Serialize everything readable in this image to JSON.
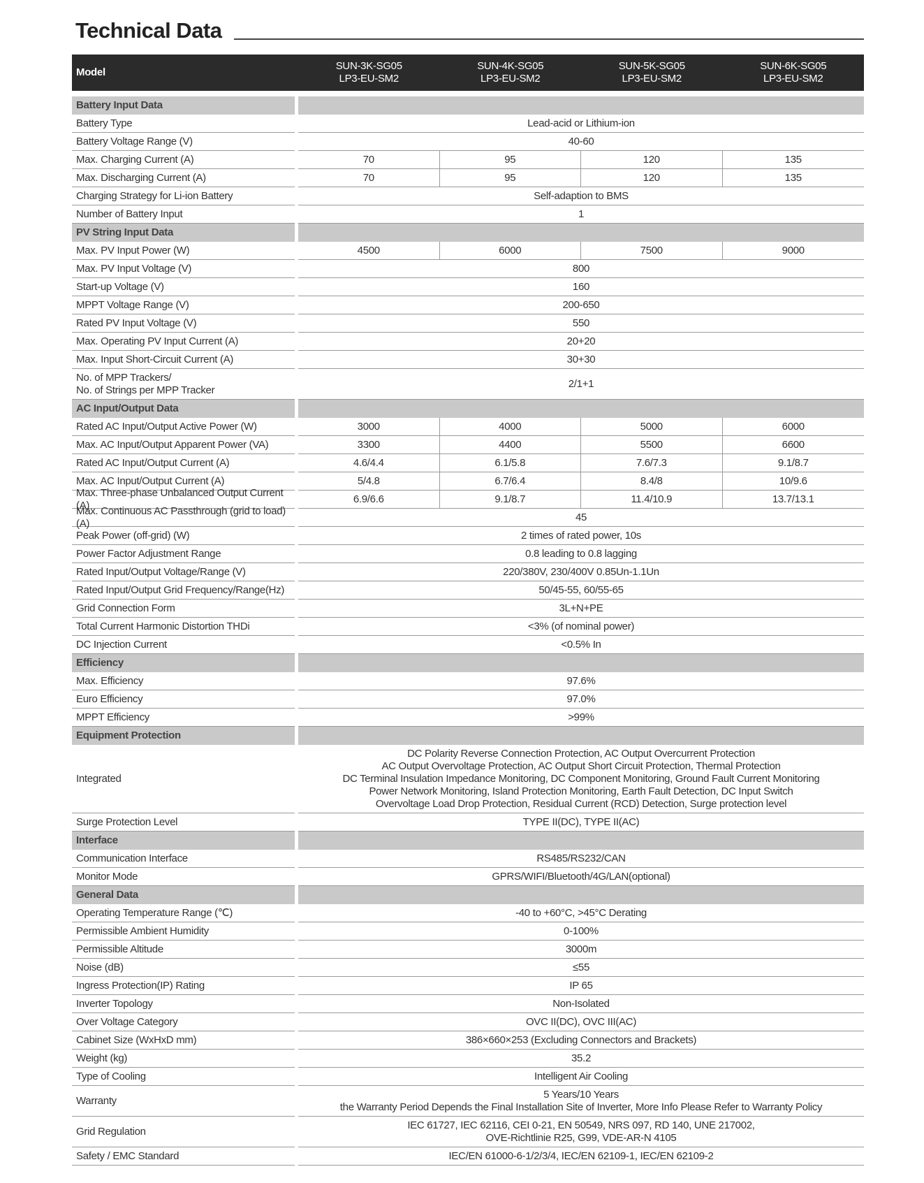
{
  "title": "Technical Data",
  "header": {
    "label": "Model",
    "models": [
      "SUN-3K-SG05\nLP3-EU-SM2",
      "SUN-4K-SG05\nLP3-EU-SM2",
      "SUN-5K-SG05\nLP3-EU-SM2",
      "SUN-6K-SG05\nLP3-EU-SM2"
    ]
  },
  "sections": [
    {
      "title": "Battery Input Data",
      "rows": [
        {
          "label": "Battery Type",
          "values": [
            "Lead-acid or Lithium-ion"
          ]
        },
        {
          "label": "Battery Voltage Range (V)",
          "values": [
            "40-60"
          ]
        },
        {
          "label": "Max. Charging Current (A)",
          "values": [
            "70",
            "95",
            "120",
            "135"
          ]
        },
        {
          "label": "Max. Discharging Current (A)",
          "values": [
            "70",
            "95",
            "120",
            "135"
          ]
        },
        {
          "label": "Charging Strategy for Li-ion Battery",
          "values": [
            "Self-adaption to BMS"
          ]
        },
        {
          "label": "Number of Battery Input",
          "values": [
            "1"
          ]
        }
      ]
    },
    {
      "title": "PV String Input Data",
      "rows": [
        {
          "label": "Max. PV Input Power (W)",
          "values": [
            "4500",
            "6000",
            "7500",
            "9000"
          ]
        },
        {
          "label": "Max. PV Input Voltage (V)",
          "values": [
            "800"
          ]
        },
        {
          "label": "Start-up Voltage (V)",
          "values": [
            "160"
          ]
        },
        {
          "label": "MPPT  Voltage Range (V)",
          "values": [
            "200-650"
          ]
        },
        {
          "label": "Rated PV Input Voltage (V)",
          "values": [
            "550"
          ]
        },
        {
          "label": "Max. Operating PV Input Current (A)",
          "values": [
            "20+20"
          ]
        },
        {
          "label": "Max. Input Short-Circuit Current (A)",
          "values": [
            "30+30"
          ]
        },
        {
          "label": "No. of MPP Trackers/\nNo. of Strings per MPP Tracker",
          "values": [
            "2/1+1"
          ]
        }
      ]
    },
    {
      "title": "AC Input/Output Data",
      "rows": [
        {
          "label": "Rated AC Input/Output Active Power (W)",
          "values": [
            "3000",
            "4000",
            "5000",
            "6000"
          ]
        },
        {
          "label": "Max. AC Input/Output Apparent Power (VA)",
          "values": [
            "3300",
            "4400",
            "5500",
            "6600"
          ]
        },
        {
          "label": "Rated AC Input/Output Current (A)",
          "values": [
            "4.6/4.4",
            "6.1/5.8",
            "7.6/7.3",
            "9.1/8.7"
          ]
        },
        {
          "label": "Max. AC Input/Output Current (A)",
          "values": [
            "5/4.8",
            "6.7/6.4",
            "8.4/8",
            "10/9.6"
          ]
        },
        {
          "label": "Max. Three-phase Unbalanced Output Current (A)",
          "values": [
            "6.9/6.6",
            "9.1/8.7",
            "11.4/10.9",
            "13.7/13.1"
          ]
        },
        {
          "label": "Max. Continuous AC Passthrough (grid to load) (A)",
          "values": [
            "45"
          ]
        },
        {
          "label": "Peak Power (off-grid) (W)",
          "values": [
            "2 times of rated power, 10s"
          ]
        },
        {
          "label": "Power Factor Adjustment Range",
          "values": [
            "0.8 leading to 0.8 lagging"
          ]
        },
        {
          "label": "Rated Input/Output Voltage/Range (V)",
          "values": [
            "220/380V, 230/400V  0.85Un-1.1Un"
          ]
        },
        {
          "label": "Rated Input/Output Grid Frequency/Range(Hz)",
          "values": [
            "50/45-55,  60/55-65"
          ]
        },
        {
          "label": "Grid Connection Form",
          "values": [
            "3L+N+PE"
          ]
        },
        {
          "label": "Total Current Harmonic Distortion THDi",
          "values": [
            "<3% (of nominal power)"
          ]
        },
        {
          "label": "DC Injection Current",
          "values": [
            "<0.5% In"
          ]
        }
      ]
    },
    {
      "title": "Efficiency",
      "rows": [
        {
          "label": "Max. Efficiency",
          "values": [
            "97.6%"
          ]
        },
        {
          "label": "Euro Efficiency",
          "values": [
            "97.0%"
          ]
        },
        {
          "label": "MPPT Efficiency",
          "values": [
            ">99%"
          ]
        }
      ]
    },
    {
      "title": "Equipment Protection",
      "rows": [
        {
          "label": "Integrated",
          "values": [
            "DC Polarity Reverse Connection Protection, AC Output Overcurrent Protection\nAC Output Overvoltage Protection, AC Output Short Circuit Protection, Thermal Protection\nDC Terminal Insulation Impedance Monitoring, DC Component Monitoring, Ground Fault Current Monitoring\nPower Network Monitoring, Island Protection Monitoring, Earth Fault Detection, DC Input Switch\nOvervoltage Load Drop Protection, Residual Current (RCD) Detection, Surge protection level"
          ]
        },
        {
          "label": "Surge Protection Level",
          "values": [
            "TYPE II(DC), TYPE II(AC)"
          ]
        }
      ]
    },
    {
      "title": "Interface",
      "rows": [
        {
          "label": "Communication Interface",
          "values": [
            "RS485/RS232/CAN"
          ]
        },
        {
          "label": "Monitor Mode",
          "values": [
            "GPRS/WIFI/Bluetooth/4G/LAN(optional)"
          ]
        }
      ]
    },
    {
      "title": "General Data",
      "rows": [
        {
          "label": "Operating Temperature Range (℃)",
          "values": [
            "-40 to +60°C, >45°C Derating"
          ]
        },
        {
          "label": "Permissible Ambient Humidity",
          "values": [
            "0-100%"
          ]
        },
        {
          "label": "Permissible Altitude",
          "values": [
            "3000m"
          ]
        },
        {
          "label": "Noise (dB)",
          "values": [
            "≤55"
          ]
        },
        {
          "label": "Ingress Protection(IP) Rating",
          "values": [
            "IP 65"
          ]
        },
        {
          "label": "Inverter Topology",
          "values": [
            "Non-Isolated"
          ]
        },
        {
          "label": "Over Voltage Category",
          "values": [
            "OVC II(DC), OVC III(AC)"
          ]
        },
        {
          "label": "Cabinet Size (WxHxD mm)",
          "values": [
            "386×660×253 (Excluding Connectors and Brackets)"
          ]
        },
        {
          "label": "Weight (kg)",
          "values": [
            "35.2"
          ]
        },
        {
          "label": "Type of Cooling",
          "values": [
            "Intelligent Air Cooling"
          ]
        },
        {
          "label": "Warranty",
          "values": [
            "5 Years/10 Years\nthe Warranty Period Depends the Final Installation Site of Inverter, More Info Please Refer to Warranty Policy"
          ]
        },
        {
          "label": "Grid Regulation",
          "values": [
            "IEC 61727, IEC 62116, CEI 0-21, EN 50549, NRS 097, RD 140, UNE 217002,\nOVE-Richtlinie R25, G99, VDE-AR-N 4105"
          ]
        },
        {
          "label": "Safety / EMC Standard",
          "values": [
            "IEC/EN 61000-6-1/2/3/4, IEC/EN 62109-1, IEC/EN 62109-2"
          ]
        }
      ]
    }
  ]
}
